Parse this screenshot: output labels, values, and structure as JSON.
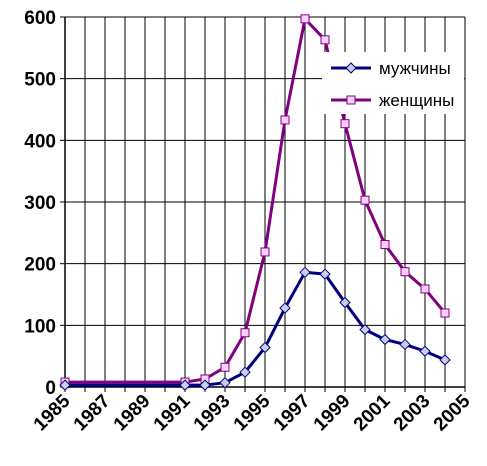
{
  "chart_data": {
    "type": "line",
    "title": "",
    "xlabel": "",
    "ylabel": "",
    "xlim": [
      1985,
      2005
    ],
    "ylim": [
      0,
      600
    ],
    "x_ticks": [
      1985,
      1987,
      1989,
      1991,
      1993,
      1995,
      1997,
      1999,
      2001,
      2003,
      2005
    ],
    "y_ticks": [
      0,
      100,
      200,
      300,
      400,
      500,
      600
    ],
    "grid": "on",
    "legend": "top-right",
    "series": [
      {
        "name": "мужчины",
        "color": "#000080",
        "marker": "diamond",
        "x": [
          1985,
          1991,
          1992,
          1993,
          1994,
          1995,
          1996,
          1997,
          1998,
          1999,
          2000,
          2001,
          2002,
          2003,
          2004
        ],
        "y": [
          3,
          3,
          3,
          7,
          24,
          64,
          128,
          186,
          183,
          137,
          93,
          77,
          69,
          58,
          44
        ]
      },
      {
        "name": "женщины",
        "color": "#800080",
        "marker": "square",
        "x": [
          1985,
          1991,
          1992,
          1993,
          1994,
          1995,
          1996,
          1997,
          1998,
          1999,
          2000,
          2001,
          2002,
          2003,
          2004
        ],
        "y": [
          8,
          8,
          13,
          32,
          88,
          219,
          433,
          597,
          563,
          427,
          303,
          231,
          187,
          159,
          120
        ]
      }
    ]
  }
}
